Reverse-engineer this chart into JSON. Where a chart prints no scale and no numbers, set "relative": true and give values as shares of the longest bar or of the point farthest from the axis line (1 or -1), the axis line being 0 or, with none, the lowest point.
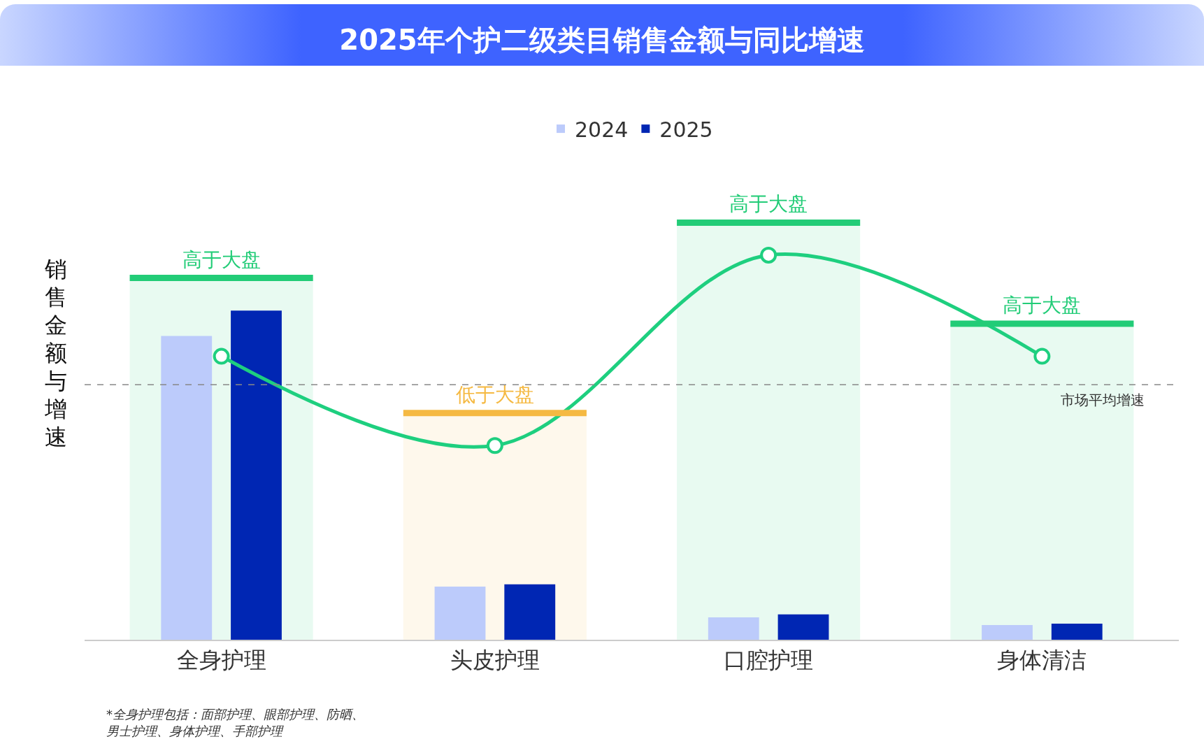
{
  "chart_data": {
    "type": "bar",
    "title": "2025年个护二级类目销售金额与同比增速",
    "ylabel": "销售金额与增速",
    "relative": true,
    "legend": "top",
    "grid": false,
    "categories": [
      "全身护理",
      "头皮护理",
      "口腔护理",
      "身体清洁"
    ],
    "series": [
      {
        "name": "2024",
        "color": "#bccbfb",
        "values": [
          0.79,
          0.138,
          0.058,
          0.038
        ]
      },
      {
        "name": "2025",
        "color": "#0026b3",
        "values": [
          0.856,
          0.144,
          0.066,
          0.042
        ]
      },
      {
        "type": "line",
        "color": "#1ecf7f",
        "marker": "circle",
        "values": [
          0.737,
          0.505,
          1,
          0.737
        ]
      }
    ],
    "ref_lines": [
      {
        "axis": "y",
        "value": 0.663,
        "label": "市场平均增速",
        "color": "#888888",
        "line_style": "dashed"
      }
    ],
    "bands": [
      {
        "axis": "x",
        "from": "全身护理",
        "to": "全身护理",
        "label": "高于大盘",
        "color": "#22cc77"
      },
      {
        "axis": "x",
        "from": "头皮护理",
        "to": "头皮护理",
        "label": "低于大盘",
        "color": "#f5b942"
      },
      {
        "axis": "x",
        "from": "口腔护理",
        "to": "口腔护理",
        "label": "高于大盘",
        "color": "#22cc77"
      },
      {
        "axis": "x",
        "from": "身体清洁",
        "to": "身体清洁",
        "label": "高于大盘",
        "color": "#22cc77"
      }
    ],
    "annotations": [
      "*全身护理包括：面部护理、眼部护理、防晒、男士护理、身体护理、手部护理"
    ]
  }
}
